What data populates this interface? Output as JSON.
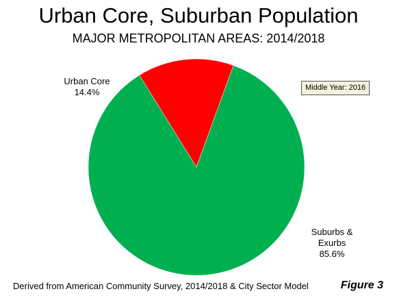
{
  "chart_data": {
    "type": "pie",
    "title": "Urban Core, Suburban Population",
    "subtitle": "MAJOR METROPOLITAN AREAS: 2014/2018",
    "slices": [
      {
        "label": "Urban Core",
        "value": 14.4,
        "value_label": "14.4%",
        "color": "#ff0000"
      },
      {
        "label": "Suburbs & Exurbs",
        "value": 85.6,
        "value_label": "85.6%",
        "color": "#00b050"
      }
    ],
    "annotation": "Middle Year: 2016",
    "source": "Derived from American Community Survey, 2014/2018 & City Sector Model",
    "figure_label": "Figure 3"
  }
}
